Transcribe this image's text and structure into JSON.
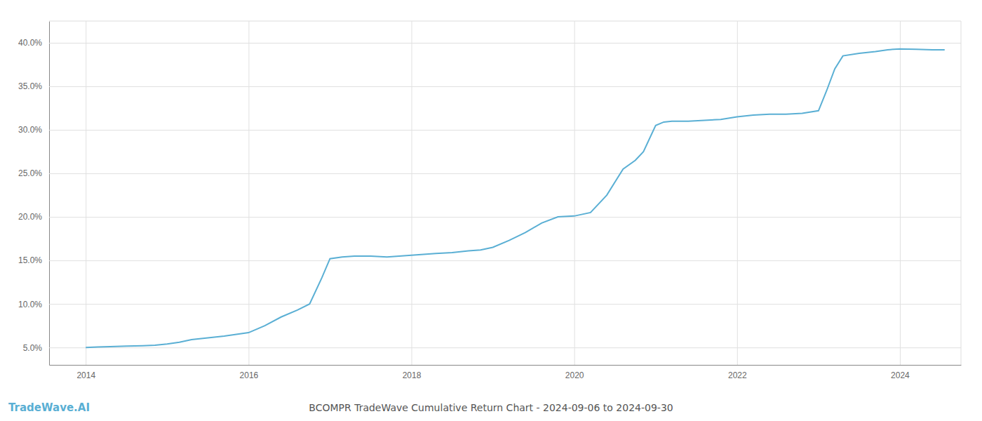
{
  "chart_data": {
    "type": "line",
    "title": "BCOMPR TradeWave Cumulative Return Chart - 2024-09-06 to 2024-09-30",
    "annotations": [
      "TradeWave.AI"
    ],
    "color": "#5aafd4",
    "x": [
      2014.0,
      2014.15,
      2014.3,
      2014.5,
      2014.7,
      2014.85,
      2015.0,
      2015.15,
      2015.3,
      2015.5,
      2015.7,
      2015.85,
      2016.0,
      2016.2,
      2016.4,
      2016.6,
      2016.75,
      2016.9,
      2017.0,
      2017.15,
      2017.3,
      2017.5,
      2017.7,
      2017.85,
      2018.0,
      2018.15,
      2018.3,
      2018.5,
      2018.7,
      2018.85,
      2019.0,
      2019.2,
      2019.4,
      2019.6,
      2019.8,
      2020.0,
      2020.2,
      2020.4,
      2020.6,
      2020.75,
      2020.85,
      2021.0,
      2021.1,
      2021.2,
      2021.4,
      2021.6,
      2021.8,
      2022.0,
      2022.2,
      2022.4,
      2022.6,
      2022.8,
      2023.0,
      2023.1,
      2023.2,
      2023.3,
      2023.5,
      2023.7,
      2023.85,
      2024.0,
      2024.2,
      2024.4,
      2024.55
    ],
    "values": [
      5.0,
      5.05,
      5.1,
      5.15,
      5.2,
      5.25,
      5.4,
      5.6,
      5.9,
      6.1,
      6.3,
      6.5,
      6.7,
      7.5,
      8.5,
      9.3,
      10.0,
      13.0,
      15.2,
      15.4,
      15.5,
      15.5,
      15.4,
      15.5,
      15.6,
      15.7,
      15.8,
      15.9,
      16.1,
      16.2,
      16.5,
      17.3,
      18.2,
      19.3,
      20.0,
      20.1,
      20.5,
      22.5,
      25.5,
      26.5,
      27.5,
      30.5,
      30.9,
      31.0,
      31.0,
      31.1,
      31.2,
      31.5,
      31.7,
      31.8,
      31.8,
      31.9,
      32.2,
      34.5,
      37.0,
      38.5,
      38.8,
      39.0,
      39.2,
      39.3,
      39.25,
      39.2,
      39.2
    ],
    "xlim": [
      2013.55,
      2024.75
    ],
    "ylim": [
      3.0,
      42.5
    ],
    "xticks": [
      2014,
      2016,
      2018,
      2020,
      2022,
      2024
    ],
    "yticks": [
      {
        "value": 5.0,
        "label": "5.0%"
      },
      {
        "value": 10.0,
        "label": "10.0%"
      },
      {
        "value": 15.0,
        "label": "15.0%"
      },
      {
        "value": 20.0,
        "label": "20.0%"
      },
      {
        "value": 25.0,
        "label": "25.0%"
      },
      {
        "value": 30.0,
        "label": "30.0%"
      },
      {
        "value": 35.0,
        "label": "35.0%"
      },
      {
        "value": 40.0,
        "label": "40.0%"
      }
    ],
    "grid": true
  }
}
